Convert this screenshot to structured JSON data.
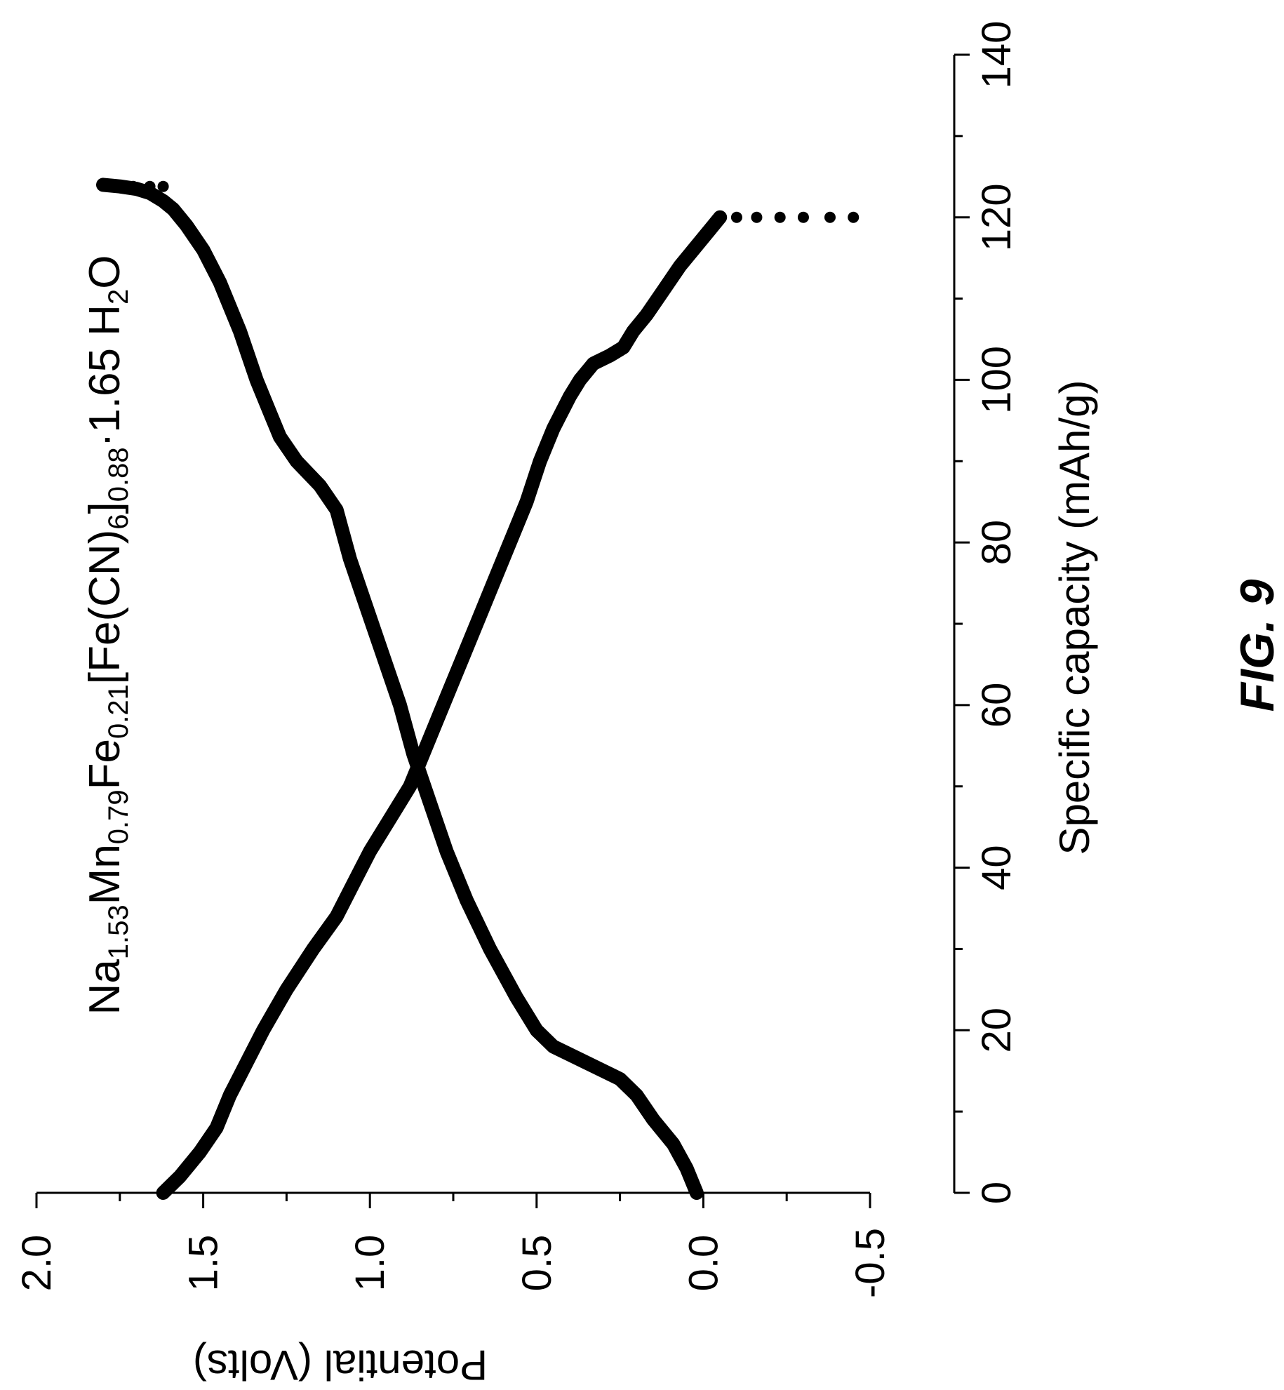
{
  "figure_label": "FIG. 9",
  "chart_data": {
    "type": "line",
    "title": "",
    "annotation": {
      "segments": [
        {
          "text": "Na",
          "sub": false
        },
        {
          "text": "1.53",
          "sub": true
        },
        {
          "text": "Mn",
          "sub": false
        },
        {
          "text": "0.79",
          "sub": true
        },
        {
          "text": "Fe",
          "sub": false
        },
        {
          "text": "0.21",
          "sub": true
        },
        {
          "text": "[Fe(CN)",
          "sub": false
        },
        {
          "text": "6",
          "sub": true
        },
        {
          "text": "]",
          "sub": false
        },
        {
          "text": "0.88",
          "sub": true
        },
        {
          "text": "·1.65 H",
          "sub": false
        },
        {
          "text": "2",
          "sub": true
        },
        {
          "text": "O",
          "sub": false
        }
      ]
    },
    "xlabel": "Specific capacity (mAh/g)",
    "ylabel": "Potential (Volts)",
    "xlim": [
      0,
      140
    ],
    "ylim": [
      -0.5,
      2.0
    ],
    "x_ticks": [
      "0",
      "20",
      "40",
      "60",
      "80",
      "100",
      "120",
      "140"
    ],
    "y_ticks": [
      "-0.5",
      "0.0",
      "0.5",
      "1.0",
      "1.5",
      "2.0"
    ],
    "orientation": "rotated 90° counter-clockwise",
    "grid": false,
    "series": [
      {
        "color": "#000000",
        "points": [
          [
            0,
            0.02
          ],
          [
            3,
            0.05
          ],
          [
            6,
            0.09
          ],
          [
            9,
            0.15
          ],
          [
            12,
            0.2
          ],
          [
            14,
            0.25
          ],
          [
            16,
            0.35
          ],
          [
            17,
            0.4
          ],
          [
            18,
            0.45
          ],
          [
            20,
            0.5
          ],
          [
            24,
            0.56
          ],
          [
            30,
            0.64
          ],
          [
            36,
            0.71
          ],
          [
            42,
            0.77
          ],
          [
            48,
            0.82
          ],
          [
            54,
            0.87
          ],
          [
            60,
            0.91
          ],
          [
            66,
            0.96
          ],
          [
            72,
            1.01
          ],
          [
            78,
            1.06
          ],
          [
            84,
            1.1
          ],
          [
            87,
            1.15
          ],
          [
            90,
            1.22
          ],
          [
            93,
            1.27
          ],
          [
            96,
            1.3
          ],
          [
            100,
            1.34
          ],
          [
            106,
            1.39
          ],
          [
            112,
            1.45
          ],
          [
            116,
            1.5
          ],
          [
            119,
            1.55
          ],
          [
            121,
            1.59
          ],
          [
            122,
            1.62
          ],
          [
            123,
            1.66
          ],
          [
            123.5,
            1.7
          ],
          [
            123.8,
            1.75
          ],
          [
            124,
            1.8
          ]
        ],
        "end_dots": [
          [
            123.8,
            1.71
          ],
          [
            123.8,
            1.66
          ],
          [
            123.8,
            1.62
          ]
        ]
      },
      {
        "color": "#000000",
        "points": [
          [
            0,
            1.62
          ],
          [
            2,
            1.57
          ],
          [
            5,
            1.51
          ],
          [
            8,
            1.46
          ],
          [
            12,
            1.42
          ],
          [
            16,
            1.37
          ],
          [
            20,
            1.32
          ],
          [
            25,
            1.25
          ],
          [
            30,
            1.17
          ],
          [
            34,
            1.1
          ],
          [
            38,
            1.05
          ],
          [
            42,
            1.0
          ],
          [
            46,
            0.94
          ],
          [
            50,
            0.88
          ],
          [
            54,
            0.84
          ],
          [
            58,
            0.8
          ],
          [
            62,
            0.76
          ],
          [
            66,
            0.72
          ],
          [
            70,
            0.68
          ],
          [
            75,
            0.63
          ],
          [
            80,
            0.58
          ],
          [
            85,
            0.53
          ],
          [
            90,
            0.49
          ],
          [
            94,
            0.45
          ],
          [
            98,
            0.4
          ],
          [
            100,
            0.37
          ],
          [
            102,
            0.33
          ],
          [
            103,
            0.28
          ],
          [
            104,
            0.24
          ],
          [
            106,
            0.21
          ],
          [
            108,
            0.17
          ],
          [
            111,
            0.12
          ],
          [
            114,
            0.07
          ],
          [
            116,
            0.03
          ],
          [
            118,
            -0.01
          ],
          [
            119,
            -0.03
          ],
          [
            120,
            -0.05
          ]
        ],
        "end_dots": [
          [
            120,
            -0.1
          ],
          [
            120,
            -0.16
          ],
          [
            120,
            -0.23
          ],
          [
            120,
            -0.3
          ],
          [
            120,
            -0.38
          ],
          [
            120,
            -0.45
          ]
        ]
      }
    ]
  }
}
